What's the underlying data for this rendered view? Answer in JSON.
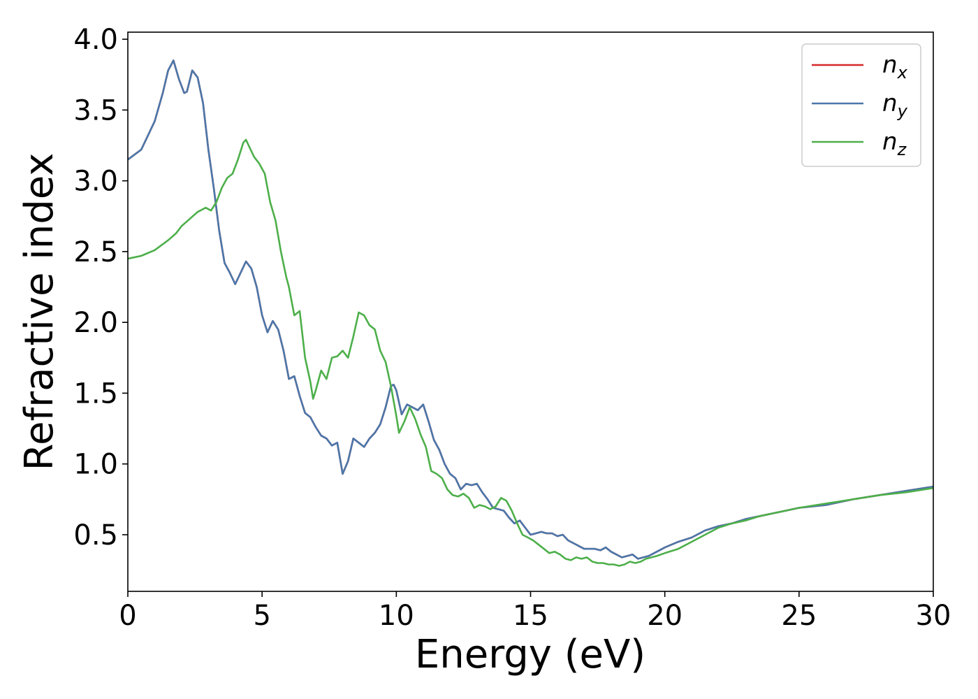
{
  "chart_data": {
    "type": "line",
    "title": "",
    "xlabel": "Energy (eV)",
    "ylabel": "Refractive index",
    "xlim": [
      0,
      30
    ],
    "ylim": [
      0.1,
      4.05
    ],
    "xticks": [
      0,
      5,
      10,
      15,
      20,
      25,
      30
    ],
    "xtick_labels": [
      "0",
      "5",
      "10",
      "15",
      "20",
      "25",
      "30"
    ],
    "yticks": [
      0.5,
      1.0,
      1.5,
      2.0,
      2.5,
      3.0,
      3.5,
      4.0
    ],
    "ytick_labels": [
      "0.5",
      "1.0",
      "1.5",
      "2.0",
      "2.5",
      "3.0",
      "3.5",
      "4.0"
    ],
    "grid": false,
    "legend_position": "top-right",
    "series": [
      {
        "name": "n_x",
        "label_base": "n",
        "label_sub": "x",
        "color": "#d62728",
        "x": [
          0,
          0.5,
          1.0,
          1.3,
          1.5,
          1.7,
          1.9,
          2.1,
          2.2,
          2.4,
          2.6,
          2.8,
          3.0,
          3.2,
          3.4,
          3.6,
          3.8,
          4.0,
          4.2,
          4.4,
          4.6,
          4.8,
          5.0,
          5.2,
          5.4,
          5.6,
          5.8,
          6.0,
          6.2,
          6.4,
          6.6,
          6.8,
          7.0,
          7.2,
          7.4,
          7.6,
          7.8,
          8.0,
          8.2,
          8.4,
          8.6,
          8.8,
          9.0,
          9.2,
          9.4,
          9.6,
          9.8,
          9.9,
          10.0,
          10.2,
          10.4,
          10.6,
          10.8,
          11.0,
          11.2,
          11.4,
          11.6,
          11.8,
          12.0,
          12.2,
          12.4,
          12.6,
          12.8,
          13.0,
          13.2,
          13.4,
          13.6,
          13.8,
          14.0,
          14.2,
          14.4,
          14.6,
          14.8,
          15.0,
          15.2,
          15.4,
          15.6,
          15.8,
          16.0,
          16.2,
          16.4,
          16.6,
          16.8,
          17.0,
          17.2,
          17.4,
          17.6,
          17.8,
          18.0,
          18.2,
          18.4,
          18.6,
          18.8,
          19.0,
          19.2,
          19.4,
          19.6,
          19.8,
          20.0,
          20.5,
          21.0,
          21.5,
          22.0,
          22.5,
          23.0,
          23.5,
          24.0,
          24.5,
          25.0,
          26.0,
          27.0,
          28.0,
          29.0,
          30.0
        ],
        "y": [
          3.15,
          3.22,
          3.42,
          3.62,
          3.78,
          3.85,
          3.72,
          3.62,
          3.63,
          3.78,
          3.73,
          3.55,
          3.22,
          2.95,
          2.65,
          2.42,
          2.35,
          2.27,
          2.35,
          2.43,
          2.38,
          2.25,
          2.05,
          1.93,
          2.01,
          1.95,
          1.8,
          1.6,
          1.62,
          1.48,
          1.36,
          1.33,
          1.26,
          1.2,
          1.18,
          1.13,
          1.15,
          0.93,
          1.02,
          1.18,
          1.15,
          1.12,
          1.18,
          1.22,
          1.28,
          1.4,
          1.55,
          1.56,
          1.52,
          1.35,
          1.42,
          1.4,
          1.38,
          1.42,
          1.3,
          1.17,
          1.1,
          1.0,
          0.93,
          0.9,
          0.82,
          0.86,
          0.85,
          0.86,
          0.8,
          0.75,
          0.69,
          0.68,
          0.67,
          0.62,
          0.58,
          0.6,
          0.55,
          0.5,
          0.51,
          0.52,
          0.51,
          0.51,
          0.49,
          0.5,
          0.46,
          0.44,
          0.42,
          0.4,
          0.4,
          0.4,
          0.39,
          0.41,
          0.38,
          0.36,
          0.34,
          0.35,
          0.36,
          0.33,
          0.34,
          0.35,
          0.37,
          0.39,
          0.41,
          0.45,
          0.48,
          0.53,
          0.56,
          0.58,
          0.61,
          0.63,
          0.65,
          0.67,
          0.69,
          0.71,
          0.75,
          0.78,
          0.81,
          0.84
        ]
      },
      {
        "name": "n_y",
        "label_base": "n",
        "label_sub": "y",
        "color": "#4a77aa",
        "x": [
          0,
          0.5,
          1.0,
          1.3,
          1.5,
          1.7,
          1.9,
          2.1,
          2.2,
          2.4,
          2.6,
          2.8,
          3.0,
          3.2,
          3.4,
          3.6,
          3.8,
          4.0,
          4.2,
          4.4,
          4.6,
          4.8,
          5.0,
          5.2,
          5.4,
          5.6,
          5.8,
          6.0,
          6.2,
          6.4,
          6.6,
          6.8,
          7.0,
          7.2,
          7.4,
          7.6,
          7.8,
          8.0,
          8.2,
          8.4,
          8.6,
          8.8,
          9.0,
          9.2,
          9.4,
          9.6,
          9.8,
          9.9,
          10.0,
          10.2,
          10.4,
          10.6,
          10.8,
          11.0,
          11.2,
          11.4,
          11.6,
          11.8,
          12.0,
          12.2,
          12.4,
          12.6,
          12.8,
          13.0,
          13.2,
          13.4,
          13.6,
          13.8,
          14.0,
          14.2,
          14.4,
          14.6,
          14.8,
          15.0,
          15.2,
          15.4,
          15.6,
          15.8,
          16.0,
          16.2,
          16.4,
          16.6,
          16.8,
          17.0,
          17.2,
          17.4,
          17.6,
          17.8,
          18.0,
          18.2,
          18.4,
          18.6,
          18.8,
          19.0,
          19.2,
          19.4,
          19.6,
          19.8,
          20.0,
          20.5,
          21.0,
          21.5,
          22.0,
          22.5,
          23.0,
          23.5,
          24.0,
          24.5,
          25.0,
          26.0,
          27.0,
          28.0,
          29.0,
          30.0
        ],
        "y": [
          3.15,
          3.22,
          3.42,
          3.62,
          3.78,
          3.85,
          3.72,
          3.62,
          3.63,
          3.78,
          3.73,
          3.55,
          3.22,
          2.95,
          2.65,
          2.42,
          2.35,
          2.27,
          2.35,
          2.43,
          2.38,
          2.25,
          2.05,
          1.93,
          2.01,
          1.95,
          1.8,
          1.6,
          1.62,
          1.48,
          1.36,
          1.33,
          1.26,
          1.2,
          1.18,
          1.13,
          1.15,
          0.93,
          1.02,
          1.18,
          1.15,
          1.12,
          1.18,
          1.22,
          1.28,
          1.4,
          1.55,
          1.56,
          1.52,
          1.35,
          1.42,
          1.4,
          1.38,
          1.42,
          1.3,
          1.17,
          1.1,
          1.0,
          0.93,
          0.9,
          0.82,
          0.86,
          0.85,
          0.86,
          0.8,
          0.75,
          0.69,
          0.68,
          0.67,
          0.62,
          0.58,
          0.6,
          0.55,
          0.5,
          0.51,
          0.52,
          0.51,
          0.51,
          0.49,
          0.5,
          0.46,
          0.44,
          0.42,
          0.4,
          0.4,
          0.4,
          0.39,
          0.41,
          0.38,
          0.36,
          0.34,
          0.35,
          0.36,
          0.33,
          0.34,
          0.35,
          0.37,
          0.39,
          0.41,
          0.45,
          0.48,
          0.53,
          0.56,
          0.58,
          0.61,
          0.63,
          0.65,
          0.67,
          0.69,
          0.71,
          0.75,
          0.78,
          0.81,
          0.84
        ]
      },
      {
        "name": "n_z",
        "label_base": "n",
        "label_sub": "z",
        "color": "#4daf4a",
        "x": [
          0,
          0.5,
          1.0,
          1.5,
          1.8,
          2.0,
          2.3,
          2.6,
          2.9,
          3.1,
          3.3,
          3.5,
          3.7,
          3.9,
          4.1,
          4.3,
          4.4,
          4.5,
          4.7,
          4.9,
          5.1,
          5.3,
          5.5,
          5.7,
          5.9,
          6.0,
          6.2,
          6.4,
          6.6,
          6.8,
          6.9,
          7.0,
          7.2,
          7.4,
          7.6,
          7.8,
          8.0,
          8.2,
          8.4,
          8.6,
          8.8,
          9.0,
          9.2,
          9.4,
          9.6,
          9.8,
          10.0,
          10.1,
          10.3,
          10.5,
          10.7,
          10.9,
          11.1,
          11.3,
          11.5,
          11.7,
          11.9,
          12.1,
          12.3,
          12.5,
          12.7,
          12.9,
          13.1,
          13.3,
          13.5,
          13.7,
          13.9,
          14.1,
          14.3,
          14.5,
          14.7,
          14.9,
          15.1,
          15.3,
          15.5,
          15.7,
          15.9,
          16.1,
          16.3,
          16.5,
          16.7,
          16.9,
          17.1,
          17.3,
          17.5,
          17.7,
          17.9,
          18.1,
          18.3,
          18.5,
          18.7,
          18.9,
          19.1,
          19.3,
          19.5,
          19.7,
          20.0,
          20.5,
          21.0,
          21.5,
          22.0,
          22.5,
          23.0,
          23.5,
          24.0,
          24.5,
          25.0,
          26.0,
          27.0,
          28.0,
          29.0,
          30.0
        ],
        "y": [
          2.45,
          2.47,
          2.51,
          2.58,
          2.63,
          2.68,
          2.73,
          2.78,
          2.81,
          2.79,
          2.85,
          2.95,
          3.02,
          3.05,
          3.15,
          3.27,
          3.29,
          3.25,
          3.17,
          3.12,
          3.05,
          2.85,
          2.72,
          2.5,
          2.32,
          2.25,
          2.05,
          2.08,
          1.75,
          1.58,
          1.46,
          1.52,
          1.66,
          1.6,
          1.75,
          1.76,
          1.8,
          1.75,
          1.9,
          2.07,
          2.05,
          1.98,
          1.95,
          1.8,
          1.72,
          1.55,
          1.34,
          1.22,
          1.3,
          1.4,
          1.32,
          1.21,
          1.12,
          0.95,
          0.93,
          0.9,
          0.82,
          0.78,
          0.77,
          0.79,
          0.76,
          0.69,
          0.71,
          0.7,
          0.68,
          0.7,
          0.76,
          0.74,
          0.67,
          0.58,
          0.5,
          0.48,
          0.46,
          0.43,
          0.4,
          0.37,
          0.38,
          0.36,
          0.33,
          0.32,
          0.34,
          0.33,
          0.34,
          0.31,
          0.3,
          0.3,
          0.29,
          0.29,
          0.28,
          0.29,
          0.31,
          0.3,
          0.31,
          0.33,
          0.34,
          0.35,
          0.37,
          0.4,
          0.45,
          0.5,
          0.55,
          0.58,
          0.6,
          0.63,
          0.65,
          0.67,
          0.69,
          0.72,
          0.75,
          0.78,
          0.8,
          0.83
        ]
      }
    ]
  }
}
